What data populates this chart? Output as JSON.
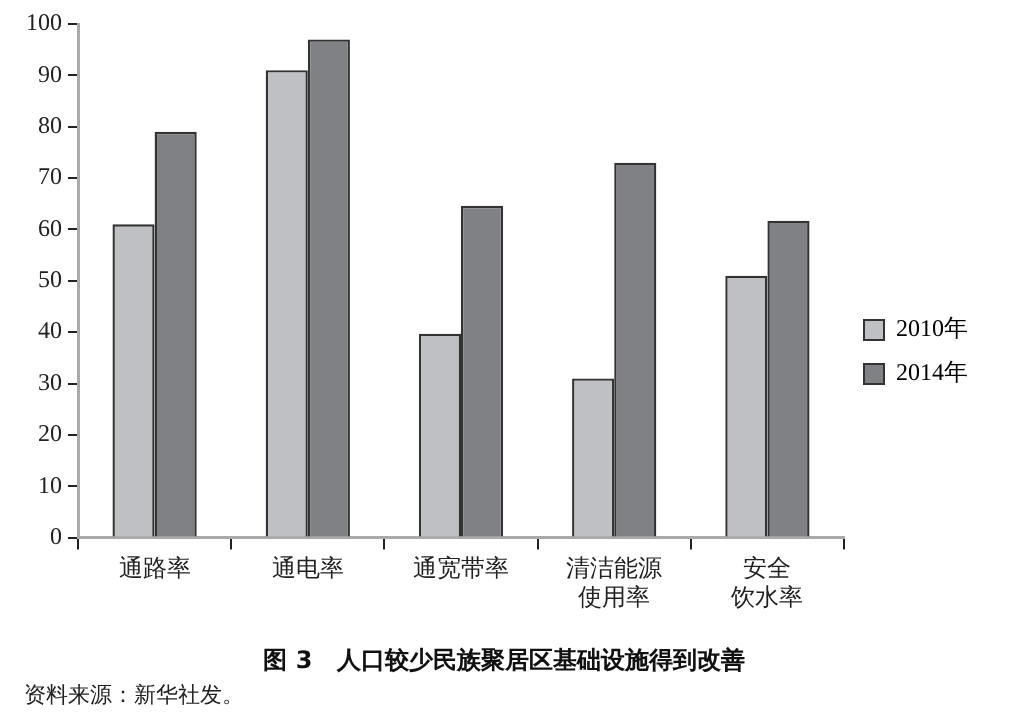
{
  "chart_data": {
    "type": "bar",
    "title": "图 3　人口较少民族聚居区基础设施得到改善",
    "categories": [
      "通路率",
      "通电率",
      "通宽带率",
      "清洁能源使用率",
      "安全饮水率"
    ],
    "series": [
      {
        "name": "2010年",
        "color": "#bfc0c4",
        "values": [
          61,
          91,
          39.7,
          31,
          51
        ]
      },
      {
        "name": "2014年",
        "color": "#808185",
        "values": [
          79,
          97,
          64.6,
          73,
          61.7
        ]
      }
    ],
    "ylim": [
      0,
      100
    ],
    "yticks": [
      0,
      10,
      20,
      30,
      40,
      50,
      60,
      70,
      80,
      90,
      100
    ],
    "grid": false,
    "legend": "right",
    "annotations": [
      "资料来源：新华社发。"
    ]
  }
}
